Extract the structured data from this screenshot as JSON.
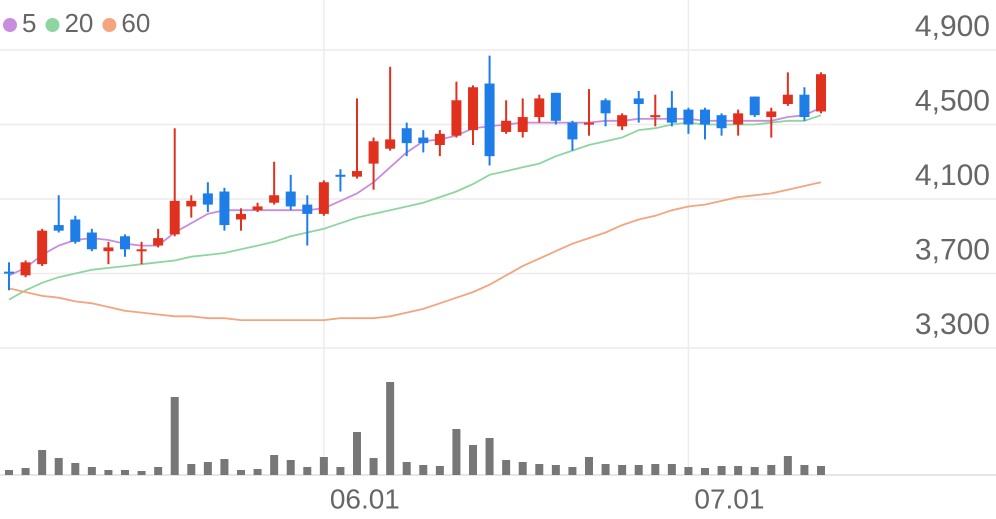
{
  "chart_data": {
    "type": "candlestick",
    "categories": [
      null,
      null,
      null,
      null,
      null,
      null,
      null,
      null,
      null,
      null,
      null,
      null,
      null,
      null,
      null,
      null,
      null,
      null,
      null,
      "06.01",
      null,
      null,
      null,
      null,
      null,
      null,
      null,
      null,
      null,
      null,
      null,
      null,
      null,
      null,
      null,
      null,
      null,
      null,
      null,
      null,
      null,
      "07.01",
      null,
      null,
      null,
      null,
      null,
      null,
      null,
      null
    ],
    "open": [
      3710,
      3690,
      3750,
      3960,
      3990,
      3920,
      3820,
      3900,
      3820,
      3850,
      3910,
      4060,
      4130,
      4140,
      3990,
      4040,
      4080,
      4140,
      4070,
      4020,
      4230,
      4220,
      4290,
      4370,
      4480,
      4430,
      4390,
      4440,
      4470,
      4720,
      4460,
      4460,
      4540,
      4670,
      4510,
      4500,
      4630,
      4490,
      4640,
      4540,
      4590,
      4580,
      4580,
      4550,
      4500,
      4650,
      4540,
      4610,
      4660,
      4570
    ],
    "high": [
      3760,
      3770,
      3940,
      4120,
      4010,
      3940,
      3870,
      3910,
      3870,
      3940,
      4480,
      4120,
      4190,
      4160,
      4050,
      4080,
      4300,
      4230,
      4120,
      4200,
      4260,
      4640,
      4430,
      4810,
      4510,
      4470,
      4470,
      4730,
      4710,
      4870,
      4630,
      4640,
      4660,
      4670,
      4520,
      4690,
      4640,
      4560,
      4680,
      4660,
      4680,
      4590,
      4590,
      4560,
      4580,
      4650,
      4590,
      4780,
      4700,
      4780
    ],
    "low": [
      3610,
      3680,
      3740,
      3920,
      3860,
      3820,
      3750,
      3790,
      3750,
      3840,
      3900,
      4000,
      4030,
      3930,
      3930,
      4030,
      4070,
      4040,
      3850,
      4010,
      4140,
      4210,
      4150,
      4360,
      4330,
      4350,
      4330,
      4430,
      4390,
      4280,
      4450,
      4430,
      4510,
      4500,
      4360,
      4440,
      4490,
      4470,
      4510,
      4490,
      4490,
      4450,
      4420,
      4440,
      4440,
      4540,
      4430,
      4600,
      4520,
      4560
    ],
    "close": [
      3700,
      3760,
      3930,
      3930,
      3870,
      3830,
      3840,
      3830,
      3830,
      3890,
      4090,
      4090,
      4070,
      3960,
      4020,
      4060,
      4120,
      4060,
      4020,
      4190,
      4220,
      4250,
      4410,
      4420,
      4400,
      4400,
      4450,
      4630,
      4700,
      4330,
      4520,
      4540,
      4640,
      4520,
      4420,
      4510,
      4560,
      4550,
      4610,
      4550,
      4510,
      4500,
      4500,
      4480,
      4560,
      4550,
      4570,
      4660,
      4540,
      4770
    ],
    "up_color": "#e0301e",
    "down_color": "#1e7de6",
    "series": [
      {
        "name": "5",
        "color": "#c98de0",
        "values": [
          3690,
          3730,
          3800,
          3850,
          3880,
          3890,
          3880,
          3860,
          3850,
          3850,
          3920,
          3970,
          4020,
          4040,
          4040,
          4040,
          4040,
          4040,
          4040,
          4050,
          4090,
          4130,
          4190,
          4270,
          4350,
          4410,
          4420,
          4440,
          4480,
          4490,
          4500,
          4510,
          4510,
          4510,
          4510,
          4510,
          4520,
          4520,
          4530,
          4530,
          4530,
          4530,
          4520,
          4520,
          4520,
          4520,
          4520,
          4540,
          4550,
          4590
        ]
      },
      {
        "name": "20",
        "color": "#8dd6a0",
        "values": [
          3560,
          3610,
          3650,
          3680,
          3700,
          3720,
          3730,
          3740,
          3750,
          3760,
          3770,
          3790,
          3800,
          3810,
          3830,
          3850,
          3870,
          3900,
          3920,
          3940,
          3970,
          4000,
          4020,
          4040,
          4060,
          4080,
          4110,
          4140,
          4180,
          4230,
          4250,
          4270,
          4290,
          4330,
          4360,
          4390,
          4410,
          4430,
          4470,
          4480,
          4500,
          4510,
          4500,
          4500,
          4500,
          4500,
          4510,
          4520,
          4520,
          4550
        ]
      },
      {
        "name": "60",
        "color": "#f4a47e",
        "values": [
          3620,
          3600,
          3580,
          3570,
          3550,
          3540,
          3520,
          3500,
          3490,
          3480,
          3470,
          3470,
          3460,
          3460,
          3450,
          3450,
          3450,
          3450,
          3450,
          3450,
          3460,
          3460,
          3460,
          3470,
          3490,
          3510,
          3540,
          3570,
          3600,
          3640,
          3690,
          3740,
          3780,
          3820,
          3860,
          3890,
          3920,
          3960,
          3990,
          4010,
          4040,
          4060,
          4070,
          4090,
          4110,
          4120,
          4130,
          4150,
          4170,
          4190
        ]
      }
    ],
    "ylim": [
      3300,
      4900
    ],
    "yticks": [
      {
        "value": 3300,
        "label": "3,300"
      },
      {
        "value": 3700,
        "label": "3,700"
      },
      {
        "value": 4100,
        "label": "4,100"
      },
      {
        "value": 4500,
        "label": "4,500"
      },
      {
        "value": 4900,
        "label": "4,900"
      }
    ],
    "grid": true,
    "legend": "top-left",
    "volume": {
      "type": "bar",
      "color": "#777777",
      "ylim": [
        0,
        100
      ],
      "values": [
        5,
        7,
        25,
        17,
        12,
        8,
        5,
        5,
        4,
        8,
        78,
        11,
        13,
        16,
        5,
        6,
        20,
        15,
        8,
        18,
        8,
        43,
        17,
        93,
        13,
        10,
        9,
        46,
        30,
        37,
        15,
        13,
        11,
        10,
        8,
        18,
        11,
        10,
        10,
        11,
        11,
        8,
        7,
        9,
        9,
        8,
        10,
        19,
        10,
        9
      ]
    }
  }
}
